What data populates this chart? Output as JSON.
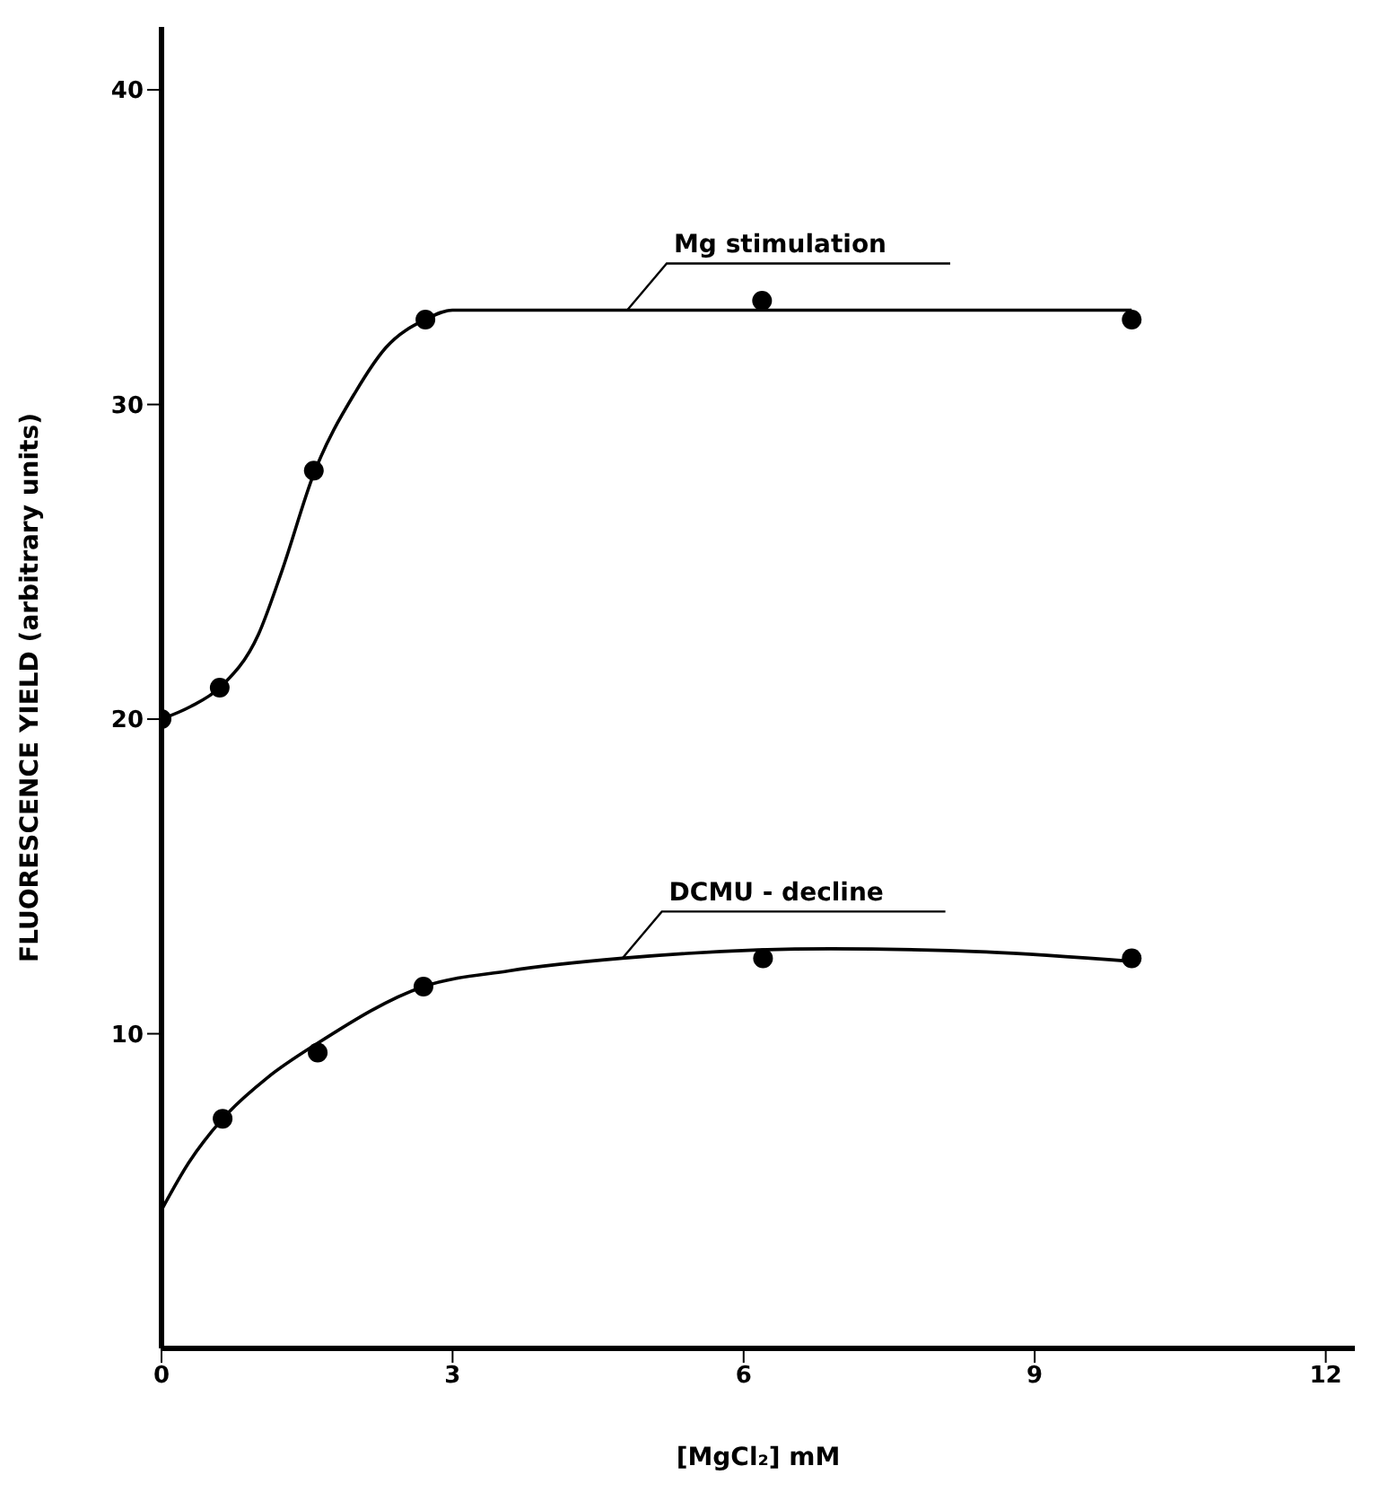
{
  "chart_data": {
    "type": "line",
    "xlabel": "[MgCl₂] mM",
    "ylabel": "FLUORESCENCE YIELD (arbitrary units)",
    "xlim": [
      0,
      12.3
    ],
    "xticks": [
      0,
      3,
      6,
      9,
      12
    ],
    "ylim": [
      0,
      42
    ],
    "yticks": [
      10,
      20,
      30,
      40
    ],
    "series": [
      {
        "type": "line",
        "color": "#000000",
        "marker": "none",
        "x": [
          0,
          0.3,
          0.6,
          1.0,
          1.24,
          1.57,
          2.0,
          2.31,
          2.72,
          3.0,
          5,
          7,
          10
        ],
        "values": [
          20,
          20.4,
          21.0,
          22.7,
          24.7,
          27.8,
          30.4,
          31.8,
          32.7,
          33.0,
          33.0,
          33.0,
          33.0
        ]
      },
      {
        "type": "scatter",
        "color": "#000000",
        "marker": "circle",
        "x": [
          0,
          0.6,
          1.57,
          2.72,
          6.19,
          10
        ],
        "values": [
          20,
          21.0,
          27.9,
          32.7,
          33.3,
          32.7
        ]
      },
      {
        "type": "line",
        "color": "#000000",
        "marker": "none",
        "x": [
          0,
          0.28,
          0.63,
          1.09,
          1.61,
          2.7,
          3.58,
          4.75,
          6.9,
          8.5,
          10
        ],
        "values": [
          4.4,
          5.9,
          7.3,
          8.6,
          9.7,
          11.5,
          12.0,
          12.4,
          12.7,
          12.6,
          12.3
        ]
      },
      {
        "type": "scatter",
        "color": "#000000",
        "marker": "circle",
        "x": [
          0.63,
          1.61,
          2.7,
          6.2,
          10
        ],
        "values": [
          7.3,
          9.4,
          11.5,
          12.4,
          12.4
        ]
      }
    ],
    "annotations": [
      {
        "text": "Mg stimulation",
        "x": 4.8,
        "y": 33
      },
      {
        "text": "DCMU - decline",
        "x": 4.75,
        "y": 12.4
      }
    ]
  }
}
